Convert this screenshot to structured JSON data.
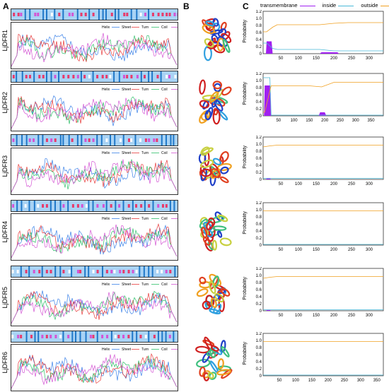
{
  "panels": {
    "a": "A",
    "b": "B",
    "c": "C"
  },
  "proteins": [
    "LjDFR1",
    "LjDFR2",
    "LjDFR3",
    "LjDFR4",
    "LjDFR5",
    "LjDFR6"
  ],
  "secondary_legend": [
    {
      "name": "Helix",
      "color": "#3b82e8"
    },
    {
      "name": "Sheet",
      "color": "#e83b3b"
    },
    {
      "name": "Turn",
      "color": "#2fbf6a"
    },
    {
      "name": "Coil",
      "color": "#d455d4"
    }
  ],
  "tm_legend": [
    {
      "name": "transmembrane",
      "color": "#a020f0"
    },
    {
      "name": "inside",
      "color": "#48b8d8"
    },
    {
      "name": "outside",
      "color": "#f0a020"
    }
  ],
  "tm_ylabel": "Probability",
  "chart_data": [
    {
      "type": "area",
      "protein": "LjDFR1",
      "ylabel": "Probability",
      "ylim": [
        0,
        1.2
      ],
      "xlim": [
        0,
        340
      ],
      "yticks": [
        "0",
        "0.2",
        "0.4",
        "0.6",
        "0.8",
        "1.0",
        "1.2"
      ],
      "xticks": [
        "50",
        "100",
        "150",
        "200",
        "250",
        "300"
      ],
      "series": [
        {
          "name": "transmembrane",
          "x": [
            0,
            8,
            10,
            24,
            27,
            35,
            160,
            165,
            210,
            215,
            340
          ],
          "y": [
            0,
            0,
            0.35,
            0.35,
            0,
            0,
            0,
            0.04,
            0.04,
            0,
            0
          ]
        },
        {
          "name": "inside",
          "x": [
            0,
            10,
            27,
            40,
            160,
            200,
            240,
            340
          ],
          "y": [
            0.3,
            0.3,
            0.15,
            0.12,
            0.12,
            0.08,
            0.08,
            0.08
          ]
        },
        {
          "name": "outside",
          "x": [
            0,
            10,
            27,
            40,
            160,
            200,
            240,
            340
          ],
          "y": [
            0.62,
            0.62,
            0.75,
            0.82,
            0.82,
            0.86,
            0.88,
            0.88
          ]
        }
      ]
    },
    {
      "type": "area",
      "protein": "LjDFR2",
      "ylabel": "Probability",
      "ylim": [
        0,
        1.2
      ],
      "xlim": [
        0,
        390
      ],
      "yticks": [
        "0",
        "0.2",
        "0.4",
        "0.6",
        "0.8",
        "1.0",
        "1.2"
      ],
      "xticks": [
        "50",
        "100",
        "150",
        "200",
        "250",
        "300",
        "350"
      ],
      "series": [
        {
          "name": "transmembrane",
          "x": [
            0,
            3,
            5,
            22,
            26,
            180,
            185,
            200,
            205,
            390
          ],
          "y": [
            0,
            0,
            0.86,
            0.86,
            0,
            0,
            0.1,
            0.1,
            0,
            0
          ]
        },
        {
          "name": "inside",
          "x": [
            0,
            5,
            22,
            26,
            390
          ],
          "y": [
            1.08,
            1.08,
            1.08,
            0.02,
            0.02
          ]
        },
        {
          "name": "outside",
          "x": [
            0,
            5,
            26,
            150,
            190,
            230,
            390
          ],
          "y": [
            0.1,
            0.1,
            0.85,
            0.85,
            0.82,
            0.95,
            0.95
          ]
        }
      ]
    },
    {
      "type": "area",
      "protein": "LjDFR3",
      "ylabel": "Probability",
      "ylim": [
        0,
        1.2
      ],
      "xlim": [
        0,
        340
      ],
      "yticks": [
        "0",
        "0.2",
        "0.4",
        "0.6",
        "0.8",
        "1.0",
        "1.2"
      ],
      "xticks": [
        "50",
        "100",
        "150",
        "200",
        "250",
        "300"
      ],
      "series": [
        {
          "name": "transmembrane",
          "x": [
            0,
            8,
            10,
            20,
            22,
            340
          ],
          "y": [
            0,
            0,
            0.03,
            0.03,
            0,
            0
          ]
        },
        {
          "name": "inside",
          "x": [
            0,
            340
          ],
          "y": [
            0.03,
            0.03
          ]
        },
        {
          "name": "outside",
          "x": [
            0,
            20,
            40,
            340
          ],
          "y": [
            0.92,
            0.95,
            0.97,
            0.97
          ]
        }
      ]
    },
    {
      "type": "area",
      "protein": "LjDFR4",
      "ylabel": "Probability",
      "ylim": [
        0,
        1.2
      ],
      "xlim": [
        0,
        340
      ],
      "yticks": [
        "0",
        "0.2",
        "0.4",
        "0.6",
        "0.8",
        "1.0",
        "1.2"
      ],
      "xticks": [
        "50",
        "100",
        "150",
        "200",
        "250",
        "300"
      ],
      "series": [
        {
          "name": "transmembrane",
          "x": [
            0,
            340
          ],
          "y": [
            0,
            0
          ]
        },
        {
          "name": "inside",
          "x": [
            0,
            340
          ],
          "y": [
            0.02,
            0.02
          ]
        },
        {
          "name": "outside",
          "x": [
            0,
            340
          ],
          "y": [
            0.97,
            0.97
          ]
        }
      ]
    },
    {
      "type": "area",
      "protein": "LjDFR5",
      "ylabel": "Probability",
      "ylim": [
        0,
        1.2
      ],
      "xlim": [
        0,
        340
      ],
      "yticks": [
        "0",
        "0.2",
        "0.4",
        "0.6",
        "0.8",
        "1.0",
        "1.2"
      ],
      "xticks": [
        "50",
        "100",
        "150",
        "200",
        "250",
        "300"
      ],
      "series": [
        {
          "name": "transmembrane",
          "x": [
            0,
            8,
            10,
            20,
            22,
            340
          ],
          "y": [
            0,
            0,
            0.02,
            0.02,
            0,
            0
          ]
        },
        {
          "name": "inside",
          "x": [
            0,
            340
          ],
          "y": [
            0.03,
            0.03
          ]
        },
        {
          "name": "outside",
          "x": [
            0,
            20,
            40,
            340
          ],
          "y": [
            0.92,
            0.95,
            0.97,
            0.97
          ]
        }
      ]
    },
    {
      "type": "area",
      "protein": "LjDFR6",
      "ylabel": "Probability",
      "ylim": [
        0,
        1.2
      ],
      "xlim": [
        0,
        370
      ],
      "yticks": [
        "0",
        "0.2",
        "0.4",
        "0.6",
        "0.8",
        "1.0",
        "1.2"
      ],
      "xticks": [
        "50",
        "100",
        "150",
        "200",
        "250",
        "300",
        "350"
      ],
      "series": [
        {
          "name": "transmembrane",
          "x": [
            0,
            370
          ],
          "y": [
            0,
            0
          ]
        },
        {
          "name": "inside",
          "x": [
            0,
            370
          ],
          "y": [
            0.02,
            0.02
          ]
        },
        {
          "name": "outside",
          "x": [
            0,
            370
          ],
          "y": [
            0.97,
            0.97
          ]
        }
      ]
    }
  ]
}
